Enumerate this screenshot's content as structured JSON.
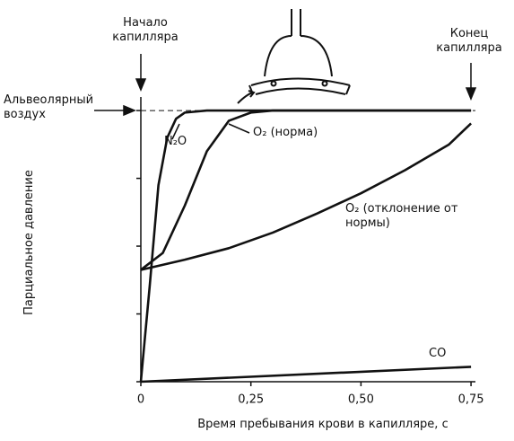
{
  "chart_data": {
    "type": "line",
    "x_label": "Время пребывания крови  в капилляре, с",
    "y_label": "Парциальное давление",
    "annotations": [
      "Начало капилляра",
      "Конец капилляра"
    ],
    "reference_lines": [
      {
        "value": 4,
        "label": "Альвеолярный воздух"
      }
    ],
    "xlim": [
      0,
      0.76
    ],
    "ylim": [
      0,
      4.2
    ],
    "xticks": [
      0,
      {
        "value": 0.25,
        "label": "0,25"
      },
      {
        "value": 0.5,
        "label": "0,50"
      },
      {
        "value": 0.75,
        "label": "0,75"
      }
    ],
    "yticks": [
      0,
      1,
      2,
      3,
      4
    ],
    "series": [
      {
        "name": "N₂O",
        "color": "#111111",
        "x": [
          0,
          0.02,
          0.04,
          0.06,
          0.08,
          0.1,
          0.15,
          0.75
        ],
        "values": [
          0,
          1.4,
          2.9,
          3.6,
          3.88,
          3.97,
          4,
          4
        ]
      },
      {
        "name": "O₂ (норма)",
        "color": "#111111",
        "x": [
          0,
          0.05,
          0.1,
          0.15,
          0.2,
          0.25,
          0.3,
          0.75
        ],
        "values": [
          1.65,
          1.9,
          2.6,
          3.4,
          3.85,
          3.97,
          4,
          4
        ]
      },
      {
        "name": "O₂ (отклонение от нормы)",
        "color": "#111111",
        "x": [
          0,
          0.1,
          0.2,
          0.3,
          0.4,
          0.5,
          0.6,
          0.7,
          0.75
        ],
        "values": [
          1.65,
          1.8,
          1.97,
          2.2,
          2.48,
          2.78,
          3.12,
          3.5,
          3.81
        ]
      },
      {
        "name": "CO",
        "color": "#111111",
        "x": [
          0,
          0.75
        ],
        "values": [
          0,
          0.22
        ]
      }
    ]
  }
}
